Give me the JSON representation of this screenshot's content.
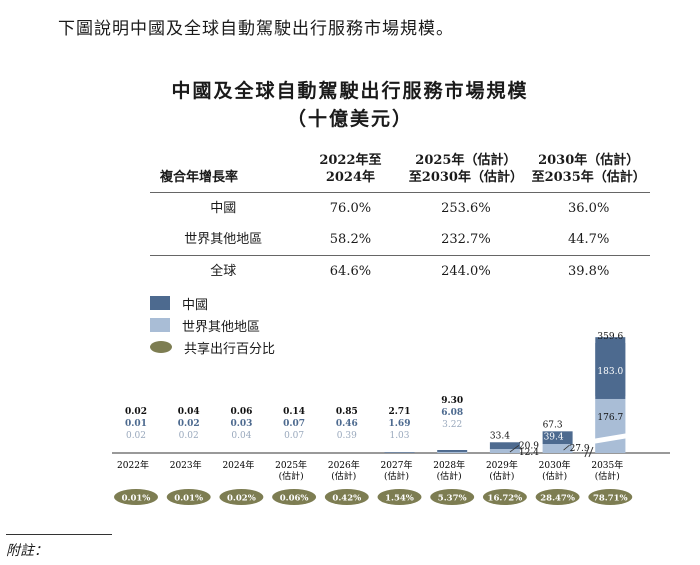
{
  "intro": "下圖說明中國及全球自動駕駛出行服務市場規模。",
  "title": "中國及全球自動駕駛出行服務市場規模",
  "subtitle": "（十億美元）",
  "colors": {
    "china": "#4d6a8f",
    "rest": "#a9bdd6",
    "share": "#7d7d52"
  },
  "cagr_table": {
    "header": {
      "label": "複合年增長率",
      "col1": [
        "2022年至",
        "2024年"
      ],
      "col2": [
        "2025年（估計）",
        "至2030年（估計）"
      ],
      "col3": [
        "2030年（估計）",
        "至2035年（估計）"
      ]
    },
    "rows": [
      {
        "label": "中國",
        "values": [
          "76.0%",
          "253.6%",
          "36.0%"
        ]
      },
      {
        "label": "世界其他地區",
        "values": [
          "58.2%",
          "232.7%",
          "44.7%"
        ]
      },
      {
        "label": "全球",
        "values": [
          "64.6%",
          "244.0%",
          "39.8%"
        ]
      }
    ]
  },
  "legend": {
    "china": "中國",
    "rest": "世界其他地區",
    "share": "共享出行百分比"
  },
  "chart_data": {
    "type": "bar",
    "stacked": true,
    "categories": [
      [
        "2022年"
      ],
      [
        "2023年"
      ],
      [
        "2024年"
      ],
      [
        "2025年",
        "(估計)"
      ],
      [
        "2026年",
        "(估計)"
      ],
      [
        "2027年",
        "(估計)"
      ],
      [
        "2028年",
        "(估計)"
      ],
      [
        "2029年",
        "(估計)"
      ],
      [
        "2030年",
        "(估計)"
      ],
      [
        "2035年",
        "(估計)"
      ]
    ],
    "series": [
      {
        "name": "中國",
        "values": [
          0.01,
          0.02,
          0.03,
          0.07,
          0.46,
          1.69,
          6.08,
          20.9,
          39.4,
          183.0
        ]
      },
      {
        "name": "世界其他地區",
        "values": [
          0.02,
          0.02,
          0.04,
          0.07,
          0.39,
          1.03,
          3.22,
          12.4,
          27.9,
          176.7
        ]
      }
    ],
    "totals": [
      0.02,
      0.04,
      0.06,
      0.14,
      0.85,
      2.71,
      9.3,
      33.4,
      67.3,
      359.6
    ],
    "value_labels": {
      "totals": [
        "0.02",
        "0.04",
        "0.06",
        "0.14",
        "0.85",
        "2.71",
        "9.30",
        "33.4",
        "67.3",
        "359.6"
      ],
      "china": [
        "0.01",
        "0.02",
        "0.03",
        "0.07",
        "0.46",
        "1.69",
        "6.08",
        "20.9",
        "39.4",
        "183.0"
      ],
      "rest": [
        "0.02",
        "0.02",
        "0.04",
        "0.07",
        "0.39",
        "1.03",
        "3.22",
        "12.4",
        "27.9",
        "176.7"
      ]
    },
    "axis_break_after_index": 8,
    "shared_mobility_share": [
      "0.01%",
      "0.01%",
      "0.02%",
      "0.06%",
      "0.42%",
      "1.54%",
      "5.37%",
      "16.72%",
      "28.47%",
      "78.71%"
    ]
  },
  "footnote": "附註："
}
